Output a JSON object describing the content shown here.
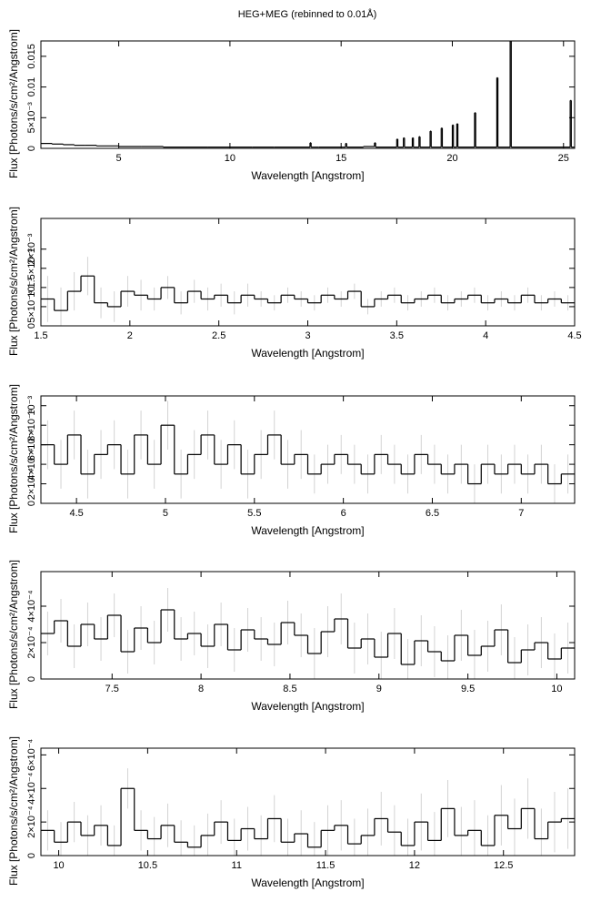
{
  "title": "HEG+MEG (rebinned to 0.01Å)",
  "chart_data": [
    {
      "type": "line",
      "x_label": "Wavelength [Angstrom]",
      "y_label": "Flux [Photons/s/cm²/Angstrom]",
      "xlim": [
        1.5,
        25.5
      ],
      "ylim": [
        0,
        0.0175
      ],
      "xticks": [
        5,
        10,
        15,
        20,
        25
      ],
      "yticks": [
        0,
        {
          "value": 0.005,
          "label": "5×10⁻³"
        },
        0.01,
        0.015
      ],
      "x": [
        1.5,
        2,
        2.5,
        3,
        3.5,
        4,
        5,
        6,
        7,
        8,
        9,
        10,
        11,
        12,
        13.6,
        13.65,
        14,
        15,
        15.2,
        15.25,
        16,
        16.5,
        16.55,
        17.5,
        17.55,
        17.8,
        17.85,
        18.2,
        18.25,
        18.5,
        18.55,
        19,
        19.05,
        19.5,
        19.55,
        20,
        20.05,
        20.2,
        20.25,
        21,
        21.05,
        22,
        22.05,
        22.6,
        22.65,
        25.3,
        25.35
      ],
      "series": [
        {
          "color": "#000000",
          "values": [
            0.0008,
            0.0007,
            0.0006,
            0.0005,
            0.0005,
            0.0004,
            0.0003,
            0.0003,
            0.0002,
            0.0002,
            0.0002,
            0.0002,
            0.0002,
            0.0002,
            0.0009,
            0.0002,
            0.0002,
            0.0002,
            0.0008,
            0.0002,
            0.0003,
            0.0009,
            0.0002,
            0.0015,
            0.0002,
            0.0017,
            0.0002,
            0.0017,
            0.0002,
            0.0019,
            0.0002,
            0.0028,
            0.0002,
            0.0033,
            0.0002,
            0.0038,
            0.0002,
            0.004,
            0.0002,
            0.0058,
            0.0002,
            0.0115,
            0.0002,
            0.0175,
            0.0002,
            0.0078,
            0.0002
          ]
        }
      ]
    },
    {
      "type": "line",
      "x_label": "Wavelength [Angstrom]",
      "y_label": "Flux [Photons/s/cm²/Angstrom]",
      "xlim": [
        1.5,
        4.5
      ],
      "ylim": [
        0,
        0.0028
      ],
      "xticks": [
        1.5,
        2,
        2.5,
        3,
        3.5,
        4,
        4.5
      ],
      "yticks": [
        0,
        {
          "value": 0.0005,
          "label": "5×10⁻⁴"
        },
        {
          "value": 0.001,
          "label": "10⁻³"
        },
        {
          "value": 0.0015,
          "label": "1.5×10⁻³"
        },
        {
          "value": 0.002,
          "label": "2×10⁻³"
        }
      ],
      "error_color": "#c8c8c8",
      "x": [
        1.5,
        1.575,
        1.65,
        1.725,
        1.8,
        1.875,
        1.95,
        2.025,
        2.1,
        2.175,
        2.25,
        2.325,
        2.4,
        2.475,
        2.55,
        2.625,
        2.7,
        2.775,
        2.85,
        2.925,
        3,
        3.075,
        3.15,
        3.225,
        3.3,
        3.375,
        3.45,
        3.525,
        3.6,
        3.675,
        3.75,
        3.825,
        3.9,
        3.975,
        4.05,
        4.125,
        4.2,
        4.275,
        4.35,
        4.425
      ],
      "series": [
        {
          "color": "#000000",
          "values": [
            0.0007,
            0.0004,
            0.0009,
            0.0013,
            0.0006,
            0.0005,
            0.0009,
            0.0008,
            0.0007,
            0.001,
            0.0006,
            0.0009,
            0.0007,
            0.0008,
            0.0006,
            0.0008,
            0.0007,
            0.0006,
            0.0008,
            0.0007,
            0.0006,
            0.0008,
            0.0007,
            0.0009,
            0.0005,
            0.0007,
            0.0008,
            0.0006,
            0.0007,
            0.0008,
            0.0006,
            0.0007,
            0.0008,
            0.0006,
            0.0007,
            0.0006,
            0.0008,
            0.0006,
            0.0007,
            0.0006
          ],
          "errors": [
            0.0006,
            0.0006,
            0.0005,
            0.0005,
            0.0004,
            0.0004,
            0.0004,
            0.0004,
            0.0003,
            0.0003,
            0.0003,
            0.0003,
            0.0003,
            0.0003,
            0.0003,
            0.0003,
            0.0002,
            0.0002,
            0.0002,
            0.0002,
            0.0002,
            0.0002,
            0.0002,
            0.0002,
            0.0002,
            0.0002,
            0.0002,
            0.0002,
            0.0002,
            0.0002,
            0.0002,
            0.0002,
            0.0002,
            0.0002,
            0.0002,
            0.0002,
            0.0002,
            0.0002,
            0.0002,
            0.0002
          ]
        }
      ]
    },
    {
      "type": "line",
      "x_label": "Wavelength [Angstrom]",
      "y_label": "Flux [Photons/s/cm²/Angstrom]",
      "xlim": [
        4.3,
        7.3
      ],
      "ylim": [
        0,
        0.0011
      ],
      "xticks": [
        4.5,
        5,
        5.5,
        6,
        6.5,
        7
      ],
      "yticks": [
        0,
        {
          "value": 0.0002,
          "label": "2×10⁻⁴"
        },
        {
          "value": 0.0004,
          "label": "4×10⁻⁴"
        },
        {
          "value": 0.0006,
          "label": "6×10⁻⁴"
        },
        {
          "value": 0.0008,
          "label": "8×10⁻⁴"
        },
        {
          "value": 0.001,
          "label": "10⁻³"
        }
      ],
      "error_color": "#c8c8c8",
      "x": [
        4.3,
        4.375,
        4.45,
        4.525,
        4.6,
        4.675,
        4.75,
        4.825,
        4.9,
        4.975,
        5.05,
        5.125,
        5.2,
        5.275,
        5.35,
        5.425,
        5.5,
        5.575,
        5.65,
        5.725,
        5.8,
        5.875,
        5.95,
        6.025,
        6.1,
        6.175,
        6.25,
        6.325,
        6.4,
        6.475,
        6.55,
        6.625,
        6.7,
        6.775,
        6.85,
        6.925,
        7,
        7.075,
        7.15,
        7.225
      ],
      "series": [
        {
          "color": "#000000",
          "values": [
            0.0006,
            0.0004,
            0.0007,
            0.0003,
            0.0005,
            0.0006,
            0.0003,
            0.0007,
            0.0004,
            0.0008,
            0.0003,
            0.0005,
            0.0007,
            0.0004,
            0.0006,
            0.0003,
            0.0005,
            0.0007,
            0.0004,
            0.0005,
            0.0003,
            0.0004,
            0.0005,
            0.0004,
            0.0003,
            0.0005,
            0.0004,
            0.0003,
            0.0005,
            0.0004,
            0.0003,
            0.0004,
            0.0002,
            0.0004,
            0.0003,
            0.0004,
            0.0003,
            0.0004,
            0.0002,
            0.0003
          ],
          "errors": [
            0.00025,
            0.00025,
            0.00025,
            0.00025,
            0.00025,
            0.00025,
            0.00025,
            0.00025,
            0.00025,
            0.00025,
            0.00025,
            0.00025,
            0.00025,
            0.00025,
            0.00025,
            0.00025,
            0.00025,
            0.00025,
            0.00025,
            0.00025,
            0.0002,
            0.0002,
            0.0002,
            0.0002,
            0.0002,
            0.0002,
            0.0002,
            0.0002,
            0.0002,
            0.0002,
            0.0002,
            0.0002,
            0.0002,
            0.0002,
            0.0002,
            0.0002,
            0.0002,
            0.0002,
            0.0002,
            0.0002
          ]
        }
      ]
    },
    {
      "type": "line",
      "x_label": "Wavelength [Angstrom]",
      "y_label": "Flux [Photons/s/cm²/Angstrom]",
      "xlim": [
        7.1,
        10.1
      ],
      "ylim": [
        0,
        0.00059
      ],
      "xticks": [
        7.5,
        8,
        8.5,
        9,
        9.5,
        10
      ],
      "yticks": [
        0,
        {
          "value": 0.0002,
          "label": "2×10⁻⁴"
        },
        {
          "value": 0.0004,
          "label": "4×10⁻⁴"
        }
      ],
      "error_color": "#c8c8c8",
      "x": [
        7.1,
        7.175,
        7.25,
        7.325,
        7.4,
        7.475,
        7.55,
        7.625,
        7.7,
        7.775,
        7.85,
        7.925,
        8,
        8.075,
        8.15,
        8.225,
        8.3,
        8.375,
        8.45,
        8.525,
        8.6,
        8.675,
        8.75,
        8.825,
        8.9,
        8.975,
        9.05,
        9.125,
        9.2,
        9.275,
        9.35,
        9.425,
        9.5,
        9.575,
        9.65,
        9.725,
        9.8,
        9.875,
        9.95,
        10.025
      ],
      "series": [
        {
          "color": "#000000",
          "values": [
            0.00025,
            0.00032,
            0.00018,
            0.0003,
            0.00022,
            0.00035,
            0.00015,
            0.00028,
            0.0002,
            0.00038,
            0.00022,
            0.00025,
            0.00018,
            0.0003,
            0.00016,
            0.00027,
            0.00022,
            0.00019,
            0.00031,
            0.00024,
            0.00014,
            0.00026,
            0.00033,
            0.00017,
            0.00022,
            0.00012,
            0.00025,
            8e-05,
            0.00021,
            0.00015,
            0.0001,
            0.00024,
            0.00013,
            0.00018,
            0.00027,
            9e-05,
            0.00016,
            0.0002,
            0.00011,
            0.00017
          ],
          "errors": [
            0.00012,
            0.00012,
            0.00012,
            0.00012,
            0.00012,
            0.00012,
            0.00012,
            0.00012,
            0.00012,
            0.00012,
            0.00012,
            0.00012,
            0.00012,
            0.00012,
            0.00012,
            0.00012,
            0.00012,
            0.00012,
            0.00012,
            0.00012,
            0.00014,
            0.00014,
            0.00014,
            0.00014,
            0.00014,
            0.00014,
            0.00014,
            0.00014,
            0.00014,
            0.00014,
            0.00014,
            0.00014,
            0.00014,
            0.00014,
            0.00014,
            0.00014,
            0.00014,
            0.00014,
            0.00014,
            0.00014
          ]
        }
      ]
    },
    {
      "type": "line",
      "x_label": "Wavelength [Angstrom]",
      "y_label": "Flux [Photons/s/cm²/Angstrom]",
      "xlim": [
        9.9,
        12.9
      ],
      "ylim": [
        0,
        0.00064
      ],
      "xticks": [
        10,
        10.5,
        11,
        11.5,
        12,
        12.5
      ],
      "yticks": [
        0,
        {
          "value": 0.0002,
          "label": "2×10⁻⁴"
        },
        {
          "value": 0.0004,
          "label": "4×10⁻⁴"
        },
        {
          "value": 0.0006,
          "label": "6×10⁻⁴"
        }
      ],
      "error_color": "#c8c8c8",
      "x": [
        9.9,
        9.975,
        10.05,
        10.125,
        10.2,
        10.275,
        10.35,
        10.425,
        10.5,
        10.575,
        10.65,
        10.725,
        10.8,
        10.875,
        10.95,
        11.025,
        11.1,
        11.175,
        11.25,
        11.325,
        11.4,
        11.475,
        11.55,
        11.625,
        11.7,
        11.775,
        11.85,
        11.925,
        12,
        12.075,
        12.15,
        12.225,
        12.3,
        12.375,
        12.45,
        12.525,
        12.6,
        12.675,
        12.75,
        12.825
      ],
      "series": [
        {
          "color": "#000000",
          "values": [
            0.00015,
            8e-05,
            0.0002,
            0.00012,
            0.00018,
            6e-05,
            0.0004,
            0.00015,
            0.0001,
            0.00018,
            8e-05,
            5e-05,
            0.00012,
            0.0002,
            9e-05,
            0.00016,
            0.0001,
            0.00022,
            8e-05,
            0.00013,
            5e-05,
            0.00015,
            0.00018,
            7e-05,
            0.00012,
            0.00022,
            0.00014,
            6e-05,
            0.0002,
            9e-05,
            0.00028,
            0.00012,
            0.00015,
            6e-05,
            0.00024,
            0.00016,
            0.00028,
            0.0001,
            0.0002,
            0.00022
          ],
          "errors": [
            0.00012,
            0.00012,
            0.00012,
            0.00012,
            0.00012,
            0.00012,
            0.00012,
            0.00012,
            0.00013,
            0.00013,
            0.00013,
            0.00013,
            0.00013,
            0.00013,
            0.00013,
            0.00013,
            0.00014,
            0.00014,
            0.00014,
            0.00014,
            0.00015,
            0.00015,
            0.00015,
            0.00015,
            0.00016,
            0.00016,
            0.00016,
            0.00016,
            0.00017,
            0.00017,
            0.00017,
            0.00017,
            0.00018,
            0.00018,
            0.00018,
            0.00018,
            0.00018,
            0.00018,
            0.00018,
            0.00018
          ]
        }
      ]
    }
  ]
}
